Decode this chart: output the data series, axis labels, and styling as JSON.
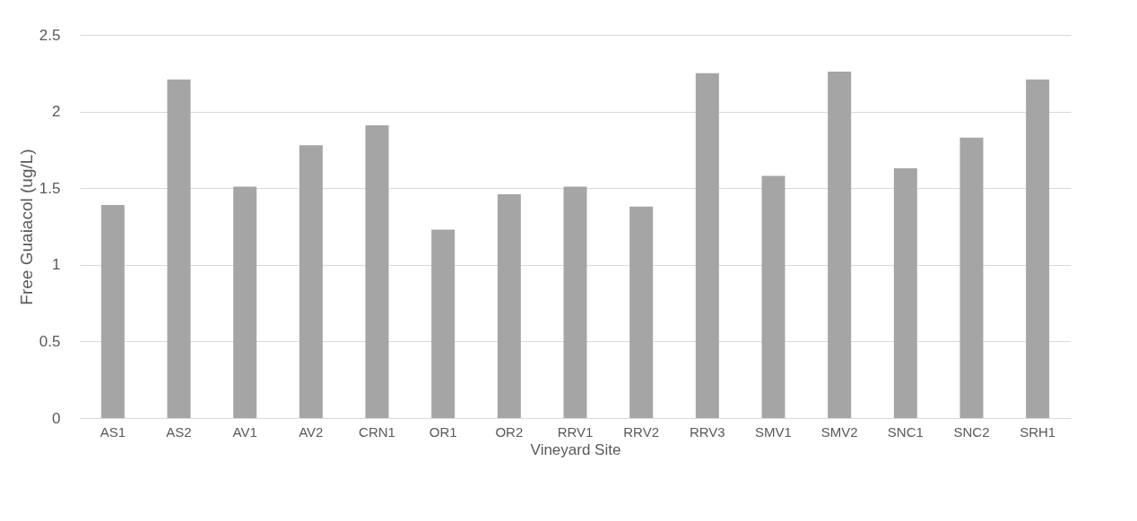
{
  "chart_data": {
    "type": "bar",
    "xlabel": "Vineyard Site",
    "ylabel": "Free Guaiacol (ug/L)",
    "categories": [
      "AS1",
      "AS2",
      "AV1",
      "AV2",
      "CRN1",
      "OR1",
      "OR2",
      "RRV1",
      "RRV2",
      "RRV3",
      "SMV1",
      "SMV2",
      "SNC1",
      "SNC2",
      "SRH1"
    ],
    "values": [
      1.39,
      2.21,
      1.51,
      1.78,
      1.91,
      1.23,
      1.46,
      1.51,
      1.38,
      2.25,
      1.58,
      2.26,
      1.63,
      1.83,
      2.21
    ],
    "color": "#a5a5a5",
    "ylim": [
      0,
      2.5
    ],
    "yticks": [
      0,
      0.5,
      1,
      1.5,
      2,
      2.5
    ],
    "grid": "y"
  }
}
